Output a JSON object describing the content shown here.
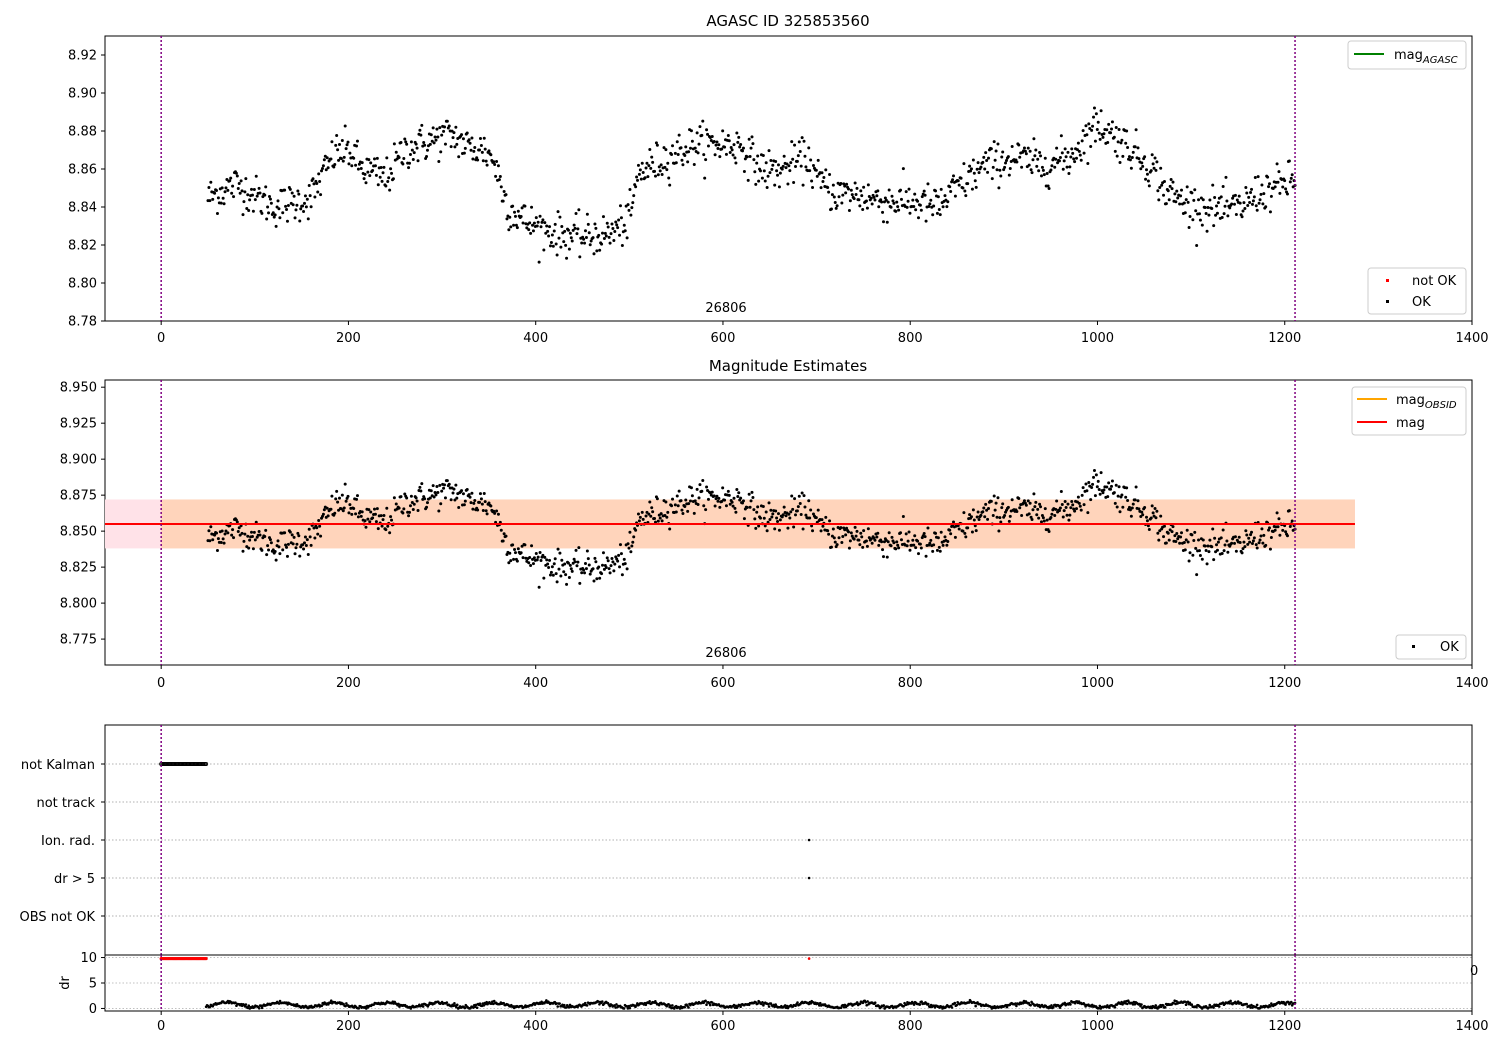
{
  "figure": {
    "title": "AGASC ID 325853560",
    "bg": "#ffffff"
  },
  "colors": {
    "ok": "#000000",
    "not_ok": "#ff0000",
    "mag_agasc": "#008000",
    "mag_obsid": "#ffa500",
    "mag": "#ff0000",
    "obs_vline": "#800080",
    "band_inner": "#ffd1b3",
    "band_outer": "#ffe2e8"
  },
  "chart_data": [
    {
      "type": "scatter",
      "title": "AGASC ID 325853560",
      "xlim": [
        -60,
        1400
      ],
      "ylim": [
        8.78,
        8.93
      ],
      "xticks": [
        0,
        200,
        400,
        600,
        800,
        1000,
        1200,
        1400
      ],
      "yticks": [
        "8.78",
        "8.80",
        "8.82",
        "8.84",
        "8.86",
        "8.88",
        "8.90",
        "8.92"
      ],
      "obs_boundaries": [
        0,
        1211
      ],
      "obsid_label": "26806",
      "legend_upper": [
        {
          "name": "mag$_{AGASC}$",
          "label": "mag",
          "sub": "AGASC",
          "kind": "line"
        }
      ],
      "legend_lower": [
        {
          "label": "not OK",
          "kind": "point"
        },
        {
          "label": "OK",
          "kind": "point"
        }
      ],
      "series": [
        {
          "name": "OK",
          "x_range": [
            50,
            1211
          ],
          "keypoints": [
            [
              50,
              8.845
            ],
            [
              80,
              8.852
            ],
            [
              100,
              8.846
            ],
            [
              120,
              8.84
            ],
            [
              140,
              8.842
            ],
            [
              160,
              8.845
            ],
            [
              185,
              8.868
            ],
            [
              200,
              8.87
            ],
            [
              215,
              8.86
            ],
            [
              240,
              8.855
            ],
            [
              260,
              8.87
            ],
            [
              290,
              8.875
            ],
            [
              310,
              8.878
            ],
            [
              330,
              8.871
            ],
            [
              345,
              8.87
            ],
            [
              355,
              8.865
            ],
            [
              370,
              8.84
            ],
            [
              390,
              8.832
            ],
            [
              420,
              8.826
            ],
            [
              450,
              8.824
            ],
            [
              480,
              8.826
            ],
            [
              500,
              8.833
            ],
            [
              510,
              8.858
            ],
            [
              540,
              8.866
            ],
            [
              570,
              8.873
            ],
            [
              600,
              8.873
            ],
            [
              620,
              8.872
            ],
            [
              640,
              8.86
            ],
            [
              660,
              8.859
            ],
            [
              690,
              8.866
            ],
            [
              700,
              8.855
            ],
            [
              720,
              8.847
            ],
            [
              750,
              8.846
            ],
            [
              770,
              8.843
            ],
            [
              800,
              8.843
            ],
            [
              830,
              8.84
            ],
            [
              850,
              8.85
            ],
            [
              880,
              8.862
            ],
            [
              910,
              8.866
            ],
            [
              940,
              8.862
            ],
            [
              970,
              8.866
            ],
            [
              1000,
              8.884
            ],
            [
              1030,
              8.873
            ],
            [
              1060,
              8.86
            ],
            [
              1070,
              8.85
            ],
            [
              1090,
              8.843
            ],
            [
              1120,
              8.839
            ],
            [
              1150,
              8.839
            ],
            [
              1170,
              8.847
            ],
            [
              1190,
              8.85
            ],
            [
              1211,
              8.855
            ]
          ],
          "noise": 0.007,
          "count": 1150
        }
      ]
    },
    {
      "type": "scatter",
      "title": "Magnitude Estimates",
      "xlim": [
        -60,
        1400
      ],
      "ylim": [
        8.757,
        8.955
      ],
      "xticks": [
        0,
        200,
        400,
        600,
        800,
        1000,
        1200,
        1400
      ],
      "yticks": [
        "8.775",
        "8.800",
        "8.825",
        "8.850",
        "8.875",
        "8.900",
        "8.925",
        "8.950"
      ],
      "obs_boundaries": [
        0,
        1211
      ],
      "obsid_label": "26806",
      "mag": 8.855,
      "mag_obsid": 8.855,
      "band_outer": [
        8.838,
        8.872
      ],
      "band_inner": [
        8.838,
        8.872
      ],
      "band_x": [
        -60,
        1275
      ],
      "legend_upper": [
        {
          "label": "mag",
          "sub": "OBSID",
          "kind": "line"
        },
        {
          "label": "mag",
          "sub": "",
          "kind": "line"
        }
      ],
      "legend_lower": [
        {
          "label": "OK",
          "kind": "point"
        }
      ]
    },
    {
      "type": "scatter",
      "title": "",
      "xlim": [
        -60,
        1400
      ],
      "xticks": [
        0,
        200,
        400,
        600,
        800,
        1000,
        1200,
        1400
      ],
      "categories": [
        "not Kalman",
        "not track",
        "Ion. rad.",
        "dr > 5",
        "OBS not OK"
      ],
      "obs_boundaries": [
        0,
        1211
      ],
      "flags": {
        "not Kalman": {
          "x_range": [
            0,
            48
          ],
          "count": 40
        },
        "not track": {
          "x_range": null,
          "count": 0
        },
        "Ion. rad.": {
          "x": [
            692
          ]
        },
        "dr > 5": {
          "x": [
            692
          ]
        },
        "OBS not OK": {
          "x_range": null,
          "count": 0
        }
      }
    },
    {
      "type": "scatter",
      "title": "",
      "ylabel": "dr",
      "xlim": [
        -60,
        1400
      ],
      "ylim": [
        -0.5,
        10.5
      ],
      "yticks": [
        "0",
        "5",
        "10"
      ],
      "xticks": [
        "0",
        "200",
        "400",
        "600",
        "800",
        "1000",
        "1200",
        "1400"
      ],
      "obs_boundaries": [
        0,
        1211
      ],
      "right_overflow_label": "0",
      "not_ok_points": {
        "x_range": [
          0,
          48
        ],
        "y": 9.8,
        "count": 40,
        "extra_x": [
          692
        ]
      },
      "ok_points": {
        "x_range": [
          48,
          1211
        ],
        "y_base": 0.7,
        "y_amp": 0.45,
        "count": 1150
      }
    }
  ]
}
